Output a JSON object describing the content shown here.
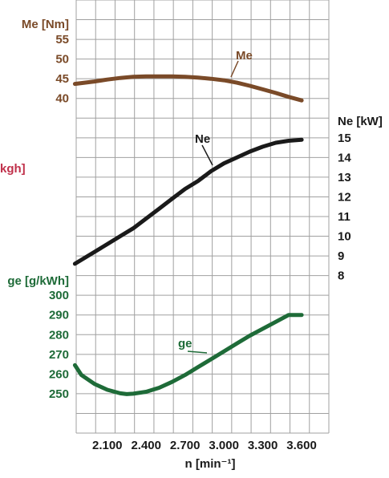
{
  "chart_data": [
    {
      "type": "line",
      "ylabel": "Me [Nm]",
      "xlabel": "n [min⁻¹]",
      "x_ticks": [
        "2.100",
        "2.400",
        "2.700",
        "3.000",
        "3.300",
        "3.600"
      ],
      "y_ticks": [
        "55",
        "50",
        "45",
        "40"
      ],
      "grid": true,
      "ylim": [
        35,
        60
      ],
      "series": [
        {
          "name": "Me",
          "color": "#7a4a28",
          "x": [
            1850,
            2000,
            2100,
            2200,
            2300,
            2400,
            2500,
            2600,
            2700,
            2800,
            2900,
            3000,
            3100,
            3200,
            3300,
            3400,
            3500,
            3600
          ],
          "y": [
            43.7,
            44.3,
            44.8,
            45.2,
            45.5,
            45.6,
            45.6,
            45.6,
            45.5,
            45.3,
            45.0,
            44.6,
            44.0,
            43.2,
            42.3,
            41.4,
            40.4,
            39.5
          ]
        }
      ]
    },
    {
      "type": "line",
      "ylabel": "Ne [kW]",
      "y_ticks": [
        "15",
        "14",
        "13",
        "12",
        "11",
        "10",
        "9",
        "8"
      ],
      "ylim": [
        7.6,
        16.6
      ],
      "series": [
        {
          "name": "Ne",
          "color": "#1a1a1a",
          "x": [
            1850,
            2000,
            2100,
            2200,
            2300,
            2400,
            2500,
            2600,
            2700,
            2800,
            2900,
            3000,
            3100,
            3200,
            3300,
            3400,
            3500,
            3600
          ],
          "y": [
            8.6,
            9.2,
            9.6,
            10.0,
            10.4,
            10.9,
            11.4,
            11.9,
            12.4,
            12.8,
            13.3,
            13.7,
            14.0,
            14.3,
            14.55,
            14.75,
            14.85,
            14.9
          ]
        }
      ]
    },
    {
      "type": "line",
      "ylabel": "ge [g/kWh]",
      "y_ticks": [
        "300",
        "290",
        "280",
        "270",
        "260",
        "250"
      ],
      "ylim": [
        230,
        310
      ],
      "series": [
        {
          "name": "ge",
          "color": "#1e6b38",
          "x": [
            1850,
            1900,
            2000,
            2100,
            2200,
            2250,
            2300,
            2400,
            2500,
            2600,
            2700,
            2800,
            2900,
            3000,
            3100,
            3200,
            3300,
            3400,
            3500,
            3600
          ],
          "y": [
            264.5,
            259.5,
            255.0,
            252.0,
            250.2,
            249.8,
            250.0,
            251.0,
            253.0,
            256.0,
            259.5,
            263.5,
            267.5,
            271.5,
            275.5,
            279.5,
            283.0,
            286.5,
            290.0,
            290.0
          ]
        }
      ]
    }
  ],
  "partial_label": "kgh]",
  "colors": {
    "me": "#7a4a28",
    "ne": "#1a1a1a",
    "ge": "#1e6b38",
    "partial": "#c0304a",
    "grid": "#a0a0a0"
  }
}
